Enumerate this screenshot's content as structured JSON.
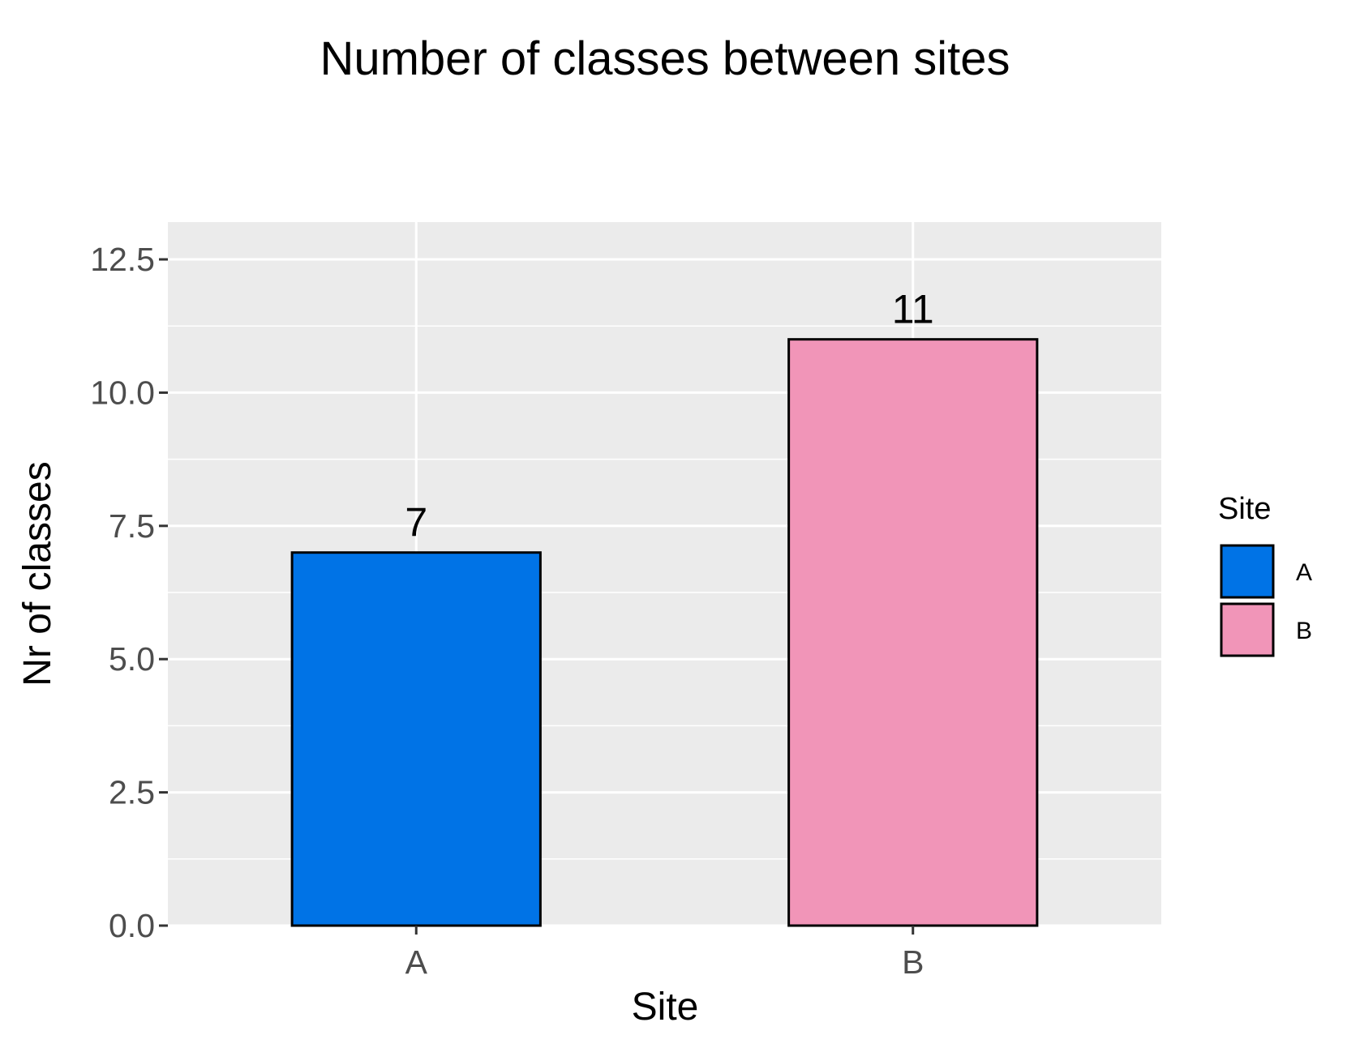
{
  "chart_data": {
    "type": "bar",
    "title": "Number of classes between sites",
    "xlabel": "Site",
    "ylabel": "Nr of classes",
    "categories": [
      "A",
      "B"
    ],
    "values": [
      7,
      11
    ],
    "data_labels": [
      "7",
      "11"
    ],
    "colors": [
      "#0073E6",
      "#F195B8"
    ],
    "ylim": [
      0,
      13.2
    ],
    "yticks": [
      0,
      2.5,
      5,
      7.5,
      10,
      12.5
    ],
    "ytick_labels": [
      "0.0",
      "2.5",
      "5.0",
      "7.5",
      "10.0",
      "12.5"
    ],
    "grid": true,
    "legend": {
      "title": "Site",
      "entries": [
        "A",
        "B"
      ],
      "position": "right"
    },
    "panel_color": "#EBEBEB"
  }
}
